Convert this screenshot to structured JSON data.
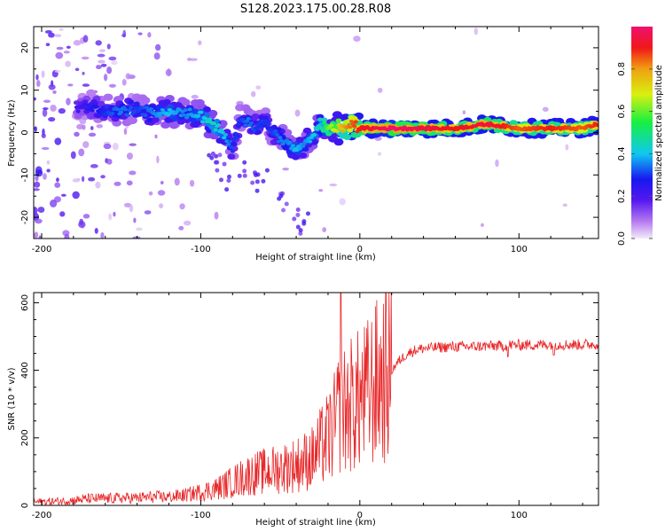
{
  "title": "S128.2023.175.00.28.R08",
  "chart_data": [
    {
      "type": "heatmap",
      "xlabel": "Height of straight line (km)",
      "ylabel": "Frequency (Hz)",
      "xlim": [
        -205,
        150
      ],
      "ylim": [
        -25,
        25
      ],
      "xticks": [
        -200,
        -100,
        0,
        100
      ],
      "yticks": [
        -20,
        -10,
        0,
        10,
        20
      ],
      "colorbar": {
        "label": "Normalized spectral amplitude",
        "range": [
          0,
          1
        ],
        "ticks": [
          0.0,
          0.2,
          0.4,
          0.6,
          0.8
        ],
        "tick_labels": [
          "0.0",
          "0.2",
          "0.4",
          "0.6",
          "0.8"
        ],
        "colors": [
          "#f2ecf8",
          "#7a1ff0",
          "#1010f0",
          "#10c0f0",
          "#10f040",
          "#d0f010",
          "#f0a010",
          "#f01010",
          "#f01070"
        ]
      },
      "ridge": {
        "description_values": "frequency centre (Hz) vs height (km) and normalized amplitude",
        "x": [
          -178,
          -170,
          -160,
          -150,
          -140,
          -130,
          -120,
          -110,
          -100,
          -92,
          -85,
          -80,
          -75,
          -70,
          -65,
          -60,
          -55,
          -50,
          -45,
          -40,
          -35,
          -30,
          -25,
          -20,
          -15,
          -10,
          -5,
          0,
          10,
          20,
          40,
          60,
          80,
          100,
          120,
          140,
          150
        ],
        "freq": [
          6,
          6,
          5,
          5,
          5.5,
          4.5,
          5,
          4.5,
          4,
          2,
          -1,
          -4,
          3,
          3,
          1,
          3,
          0,
          -1,
          -3,
          -4,
          -3,
          -1,
          2,
          1,
          1,
          1,
          2,
          1,
          1,
          1,
          1,
          1,
          2,
          1,
          1,
          1,
          2
        ],
        "amplitude": [
          0.2,
          0.25,
          0.3,
          0.35,
          0.3,
          0.35,
          0.4,
          0.35,
          0.4,
          0.45,
          0.4,
          0.3,
          0.3,
          0.35,
          0.3,
          0.3,
          0.3,
          0.35,
          0.35,
          0.4,
          0.35,
          0.4,
          0.45,
          0.6,
          0.7,
          0.8,
          0.85,
          0.9,
          0.95,
          1.0,
          0.95,
          0.9,
          0.95,
          0.85,
          0.9,
          0.85,
          0.9
        ]
      }
    },
    {
      "type": "line",
      "xlabel": "Height of straight line (km)",
      "ylabel": "SNR (10 * v/v)",
      "xlim": [
        -205,
        150
      ],
      "ylim": [
        0,
        630
      ],
      "xticks": [
        -200,
        -100,
        0,
        100
      ],
      "yticks": [
        0,
        200,
        400,
        600
      ],
      "series": [
        {
          "color": "#e8282a",
          "x": [
            -205,
            -190,
            -180,
            -170,
            -160,
            -150,
            -140,
            -130,
            -120,
            -110,
            -100,
            -90,
            -80,
            -70,
            -60,
            -50,
            -40,
            -35,
            -30,
            -25,
            -20,
            -15,
            -12,
            -10,
            -5,
            0,
            5,
            10,
            15,
            20,
            25,
            30,
            35,
            40,
            50,
            60,
            70,
            80,
            90,
            95,
            100,
            110,
            120,
            130,
            140,
            150
          ],
          "y": [
            10,
            12,
            15,
            20,
            20,
            22,
            22,
            25,
            25,
            30,
            40,
            50,
            70,
            90,
            100,
            110,
            120,
            130,
            140,
            170,
            200,
            240,
            300,
            280,
            300,
            310,
            330,
            360,
            380,
            400,
            430,
            450,
            460,
            465,
            468,
            470,
            470,
            472,
            472,
            475,
            475,
            475,
            477,
            476,
            476,
            478
          ]
        }
      ]
    }
  ]
}
